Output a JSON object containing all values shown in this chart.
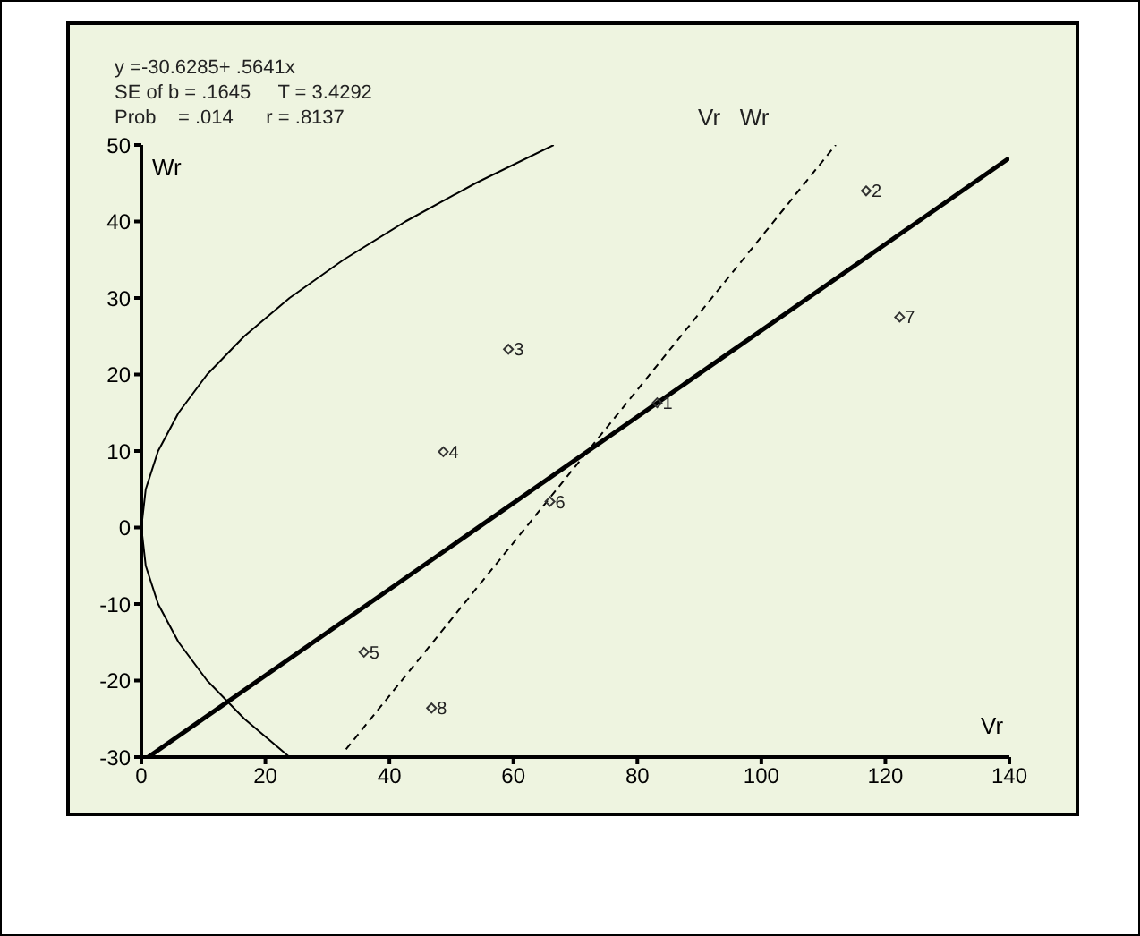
{
  "chart_data": {
    "type": "scatter",
    "xlabel": "Vr",
    "ylabel": "Wr",
    "xlim": [
      0,
      140
    ],
    "xticks": [
      0,
      20,
      40,
      60,
      80,
      100,
      120,
      140
    ],
    "ylim": [
      -30,
      50
    ],
    "yticks": [
      -30,
      -20,
      -10,
      0,
      10,
      20,
      30,
      40,
      50
    ],
    "grid": false,
    "legend": false,
    "series": [
      {
        "marker": "diamond",
        "color": "#333333",
        "x": [
          83.2,
          116.9,
          59.2,
          48.7,
          35.9,
          65.9,
          122.3,
          46.8
        ],
        "values": [
          16.3,
          44.0,
          23.3,
          9.9,
          -16.3,
          3.4,
          27.5,
          -23.6
        ]
      },
      {
        "type": "line",
        "line_style": "solid",
        "color": "#000000",
        "x": [
          1.1,
          140
        ],
        "values": [
          -30,
          48.3
        ]
      },
      {
        "type": "line",
        "line_style": "dashed",
        "color": "#000000",
        "x": [
          33,
          112
        ],
        "values": [
          -29,
          50
        ]
      },
      {
        "type": "line",
        "line_style": "solid",
        "color": "#000000",
        "x": [
          23.9,
          16.6,
          10.6,
          6.0,
          2.7,
          0.7,
          0,
          0.7,
          2.7,
          6.0,
          10.6,
          16.6,
          23.9,
          32.6,
          42.6,
          53.9,
          66.5
        ],
        "values": [
          -30,
          -25,
          -20,
          -15,
          -10,
          -5,
          0,
          5,
          10,
          15,
          20,
          25,
          30,
          35,
          40,
          45,
          50
        ]
      }
    ],
    "annotations": [
      "y =-30.6285+ .5641x",
      "SE of b = .1645     T = 3.4292",
      "Prob    = .014      r = .8137",
      "Vr   Wr",
      {
        "text": "1",
        "x": 83.2,
        "y": 16.3
      },
      {
        "text": "2",
        "x": 116.9,
        "y": 44.0
      },
      {
        "text": "3",
        "x": 59.2,
        "y": 23.3
      },
      {
        "text": "4",
        "x": 48.7,
        "y": 9.9
      },
      {
        "text": "5",
        "x": 35.9,
        "y": -16.3
      },
      {
        "text": "6",
        "x": 65.9,
        "y": 3.4
      },
      {
        "text": "7",
        "x": 122.3,
        "y": 27.5
      },
      {
        "text": "8",
        "x": 46.8,
        "y": -23.6
      }
    ]
  }
}
